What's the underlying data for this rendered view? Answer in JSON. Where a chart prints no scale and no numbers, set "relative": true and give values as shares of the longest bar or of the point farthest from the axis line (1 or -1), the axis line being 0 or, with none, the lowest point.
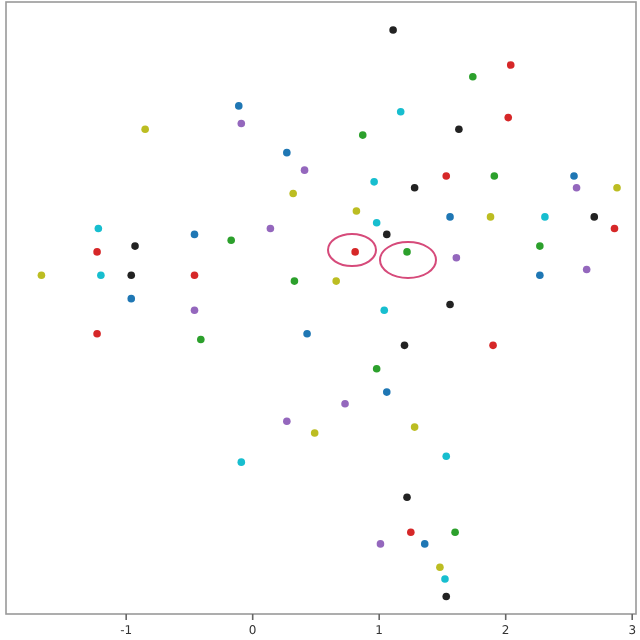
{
  "chart_data": {
    "type": "scatter",
    "relative": true,
    "xlim": [
      -1.95,
      3.03
    ],
    "xticks": [
      -1,
      0,
      1,
      2,
      3
    ],
    "tick_labels": "x",
    "marker": "circle",
    "x": [
      1.11,
      2.04,
      1.74,
      -0.11,
      -0.09,
      -0.85,
      1.17,
      1.63,
      2.02,
      0.87,
      0.27,
      0.41,
      0.32,
      0.96,
      1.28,
      1.53,
      1.91,
      2.54,
      2.56,
      2.88,
      -1.22,
      -0.93,
      -1.23,
      -0.17,
      -0.46,
      0.14,
      -1.67,
      -1.2,
      -0.96,
      -0.46,
      0.33,
      -0.96,
      -0.46,
      0.82,
      0.98,
      1.06,
      0.81,
      1.22,
      1.56,
      1.61,
      1.88,
      2.31,
      2.7,
      2.86,
      2.27,
      2.27,
      2.64,
      0.66,
      1.04,
      1.56,
      -1.23,
      -0.41,
      0.43,
      0.27,
      0.49,
      -0.09,
      1.2,
      1.9,
      0.98,
      1.06,
      0.73,
      1.28,
      1.53,
      1.22,
      1.25,
      1.6,
      1.36,
      1.01,
      1.48,
      1.52,
      1.53
    ],
    "values": [
      1.0,
      0.94,
      0.92,
      0.87,
      0.84,
      0.83,
      0.86,
      0.83,
      0.85,
      0.82,
      0.79,
      0.76,
      0.72,
      0.74,
      0.73,
      0.75,
      0.75,
      0.75,
      0.73,
      0.73,
      0.66,
      0.63,
      0.62,
      0.64,
      0.65,
      0.66,
      0.58,
      0.58,
      0.58,
      0.58,
      0.57,
      0.54,
      0.52,
      0.69,
      0.67,
      0.65,
      0.62,
      0.62,
      0.68,
      0.61,
      0.68,
      0.68,
      0.68,
      0.66,
      0.63,
      0.58,
      0.59,
      0.57,
      0.52,
      0.53,
      0.48,
      0.47,
      0.48,
      0.33,
      0.31,
      0.26,
      0.46,
      0.46,
      0.42,
      0.38,
      0.36,
      0.32,
      0.27,
      0.2,
      0.14,
      0.14,
      0.12,
      0.12,
      0.08,
      0.06,
      0.03
    ],
    "colors": [
      "#222222",
      "#d62728",
      "#2ca02c",
      "#1f77b4",
      "#9467bd",
      "#bcbd22",
      "#17becf",
      "#222222",
      "#d62728",
      "#2ca02c",
      "#1f77b4",
      "#9467bd",
      "#bcbd22",
      "#17becf",
      "#222222",
      "#d62728",
      "#2ca02c",
      "#1f77b4",
      "#9467bd",
      "#bcbd22",
      "#17becf",
      "#222222",
      "#d62728",
      "#2ca02c",
      "#1f77b4",
      "#9467bd",
      "#bcbd22",
      "#17becf",
      "#222222",
      "#d62728",
      "#2ca02c",
      "#1f77b4",
      "#9467bd",
      "#bcbd22",
      "#17becf",
      "#222222",
      "#d62728",
      "#2ca02c",
      "#1f77b4",
      "#9467bd",
      "#bcbd22",
      "#17becf",
      "#222222",
      "#d62728",
      "#2ca02c",
      "#1f77b4",
      "#9467bd",
      "#bcbd22",
      "#17becf",
      "#222222",
      "#d62728",
      "#2ca02c",
      "#1f77b4",
      "#9467bd",
      "#bcbd22",
      "#17becf",
      "#222222",
      "#d62728",
      "#2ca02c",
      "#1f77b4",
      "#9467bd",
      "#bcbd22",
      "#17becf",
      "#222222",
      "#d62728",
      "#2ca02c",
      "#1f77b4",
      "#9467bd",
      "#bcbd22",
      "#17becf",
      "#222222"
    ]
  }
}
